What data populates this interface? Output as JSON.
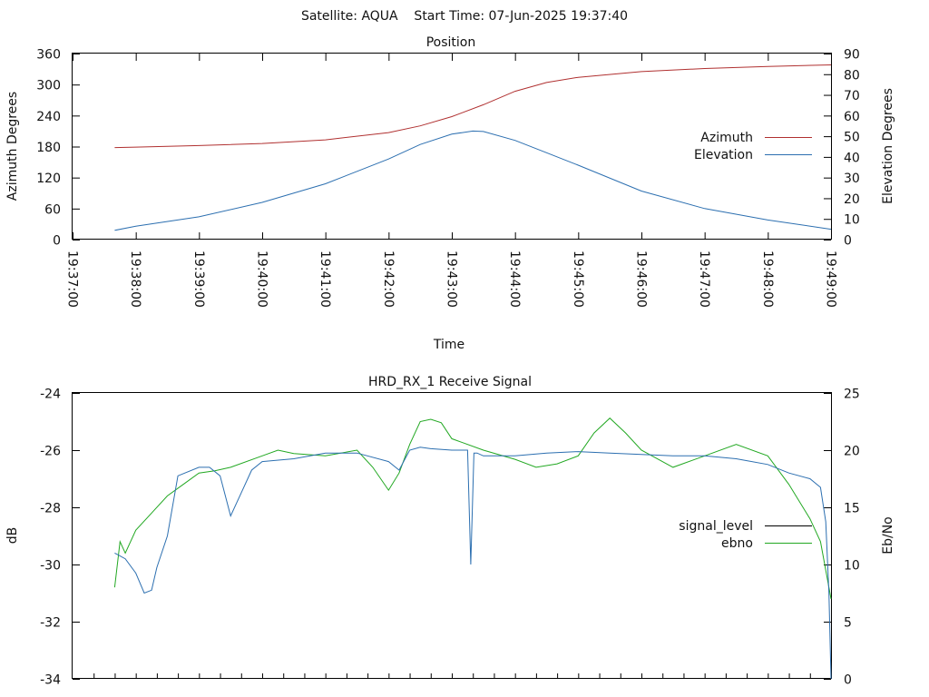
{
  "header": {
    "title": "Satellite: AQUA    Start Time: 07-Jun-2025 19:37:40"
  },
  "chart_data": [
    {
      "type": "line",
      "title": "Position",
      "xlabel": "Time",
      "ylabel": "Azimuth Degrees",
      "y2label": "Elevation Degrees",
      "xlim": [
        "19:37:00",
        "19:49:00"
      ],
      "ylim": [
        0,
        360
      ],
      "y2lim": [
        0,
        90
      ],
      "x_ticks": [
        "19:37:00",
        "19:38:00",
        "19:39:00",
        "19:40:00",
        "19:41:00",
        "19:42:00",
        "19:43:00",
        "19:44:00",
        "19:45:00",
        "19:46:00",
        "19:47:00",
        "19:48:00",
        "19:49:00"
      ],
      "y_ticks": [
        "0",
        "60",
        "120",
        "180",
        "240",
        "300",
        "360"
      ],
      "y2_ticks": [
        "0",
        "10",
        "20",
        "30",
        "40",
        "50",
        "60",
        "70",
        "80",
        "90"
      ],
      "grid": false,
      "legend_position": "right",
      "series": [
        {
          "name": "Azimuth",
          "axis": "left",
          "color": "#b03030",
          "x": [
            "19:37:40",
            "19:38:00",
            "19:39:00",
            "19:40:00",
            "19:41:00",
            "19:42:00",
            "19:42:30",
            "19:43:00",
            "19:43:30",
            "19:44:00",
            "19:44:30",
            "19:45:00",
            "19:46:00",
            "19:47:00",
            "19:48:00",
            "19:49:00"
          ],
          "y": [
            178,
            179,
            182,
            186,
            193,
            207,
            220,
            238,
            261,
            287,
            304,
            314,
            325,
            331,
            335,
            338
          ]
        },
        {
          "name": "Elevation",
          "axis": "right",
          "color": "#2c6fb0",
          "x": [
            "19:37:40",
            "19:38:00",
            "19:39:00",
            "19:40:00",
            "19:41:00",
            "19:42:00",
            "19:42:30",
            "19:43:00",
            "19:43:20",
            "19:43:30",
            "19:44:00",
            "19:44:30",
            "19:45:00",
            "19:46:00",
            "19:47:00",
            "19:48:00",
            "19:49:00"
          ],
          "y": [
            4.5,
            6.5,
            11,
            18,
            27,
            39,
            46,
            51,
            52.5,
            52.3,
            48,
            42,
            36,
            23.5,
            15,
            9.5,
            5
          ]
        }
      ]
    },
    {
      "type": "line",
      "title": "HRD_RX_1 Receive Signal",
      "xlabel": "",
      "ylabel": "dB",
      "y2label": "Eb/No",
      "xlim": [
        "19:37:00",
        "19:49:00"
      ],
      "ylim": [
        -34,
        -24
      ],
      "y2lim": [
        0,
        25
      ],
      "y_ticks": [
        "-34",
        "-32",
        "-30",
        "-28",
        "-26",
        "-24"
      ],
      "y2_ticks": [
        "0",
        "5",
        "10",
        "15",
        "20",
        "25"
      ],
      "grid": false,
      "legend_position": "right",
      "series": [
        {
          "name": "signal_level",
          "axis": "left",
          "color": "#2c6fb0",
          "x": [
            "19:37:40",
            "19:37:50",
            "19:38:00",
            "19:38:08",
            "19:38:15",
            "19:38:20",
            "19:38:30",
            "19:38:40",
            "19:39:00",
            "19:39:10",
            "19:39:20",
            "19:39:30",
            "19:39:40",
            "19:39:50",
            "19:40:00",
            "19:40:30",
            "19:41:00",
            "19:41:30",
            "19:42:00",
            "19:42:10",
            "19:42:20",
            "19:42:30",
            "19:42:40",
            "19:43:00",
            "19:43:15",
            "19:43:18",
            "19:43:21",
            "19:43:24",
            "19:43:30",
            "19:44:00",
            "19:44:30",
            "19:45:00",
            "19:45:30",
            "19:46:00",
            "19:46:30",
            "19:47:00",
            "19:47:30",
            "19:48:00",
            "19:48:20",
            "19:48:40",
            "19:48:50",
            "19:48:55",
            "19:48:58",
            "19:49:00"
          ],
          "y": [
            -29.6,
            -29.8,
            -30.3,
            -31.0,
            -30.9,
            -30.1,
            -29.0,
            -26.9,
            -26.6,
            -26.6,
            -26.9,
            -28.3,
            -27.5,
            -26.7,
            -26.4,
            -26.3,
            -26.1,
            -26.1,
            -26.4,
            -26.7,
            -26.0,
            -25.9,
            -25.95,
            -26.0,
            -26.0,
            -30.0,
            -26.1,
            -26.1,
            -26.2,
            -26.2,
            -26.1,
            -26.05,
            -26.1,
            -26.15,
            -26.2,
            -26.2,
            -26.3,
            -26.5,
            -26.8,
            -27.0,
            -27.3,
            -28.5,
            -31.0,
            -34.0
          ]
        },
        {
          "name": "ebno",
          "axis": "right",
          "color": "#22a822",
          "x": [
            "19:37:40",
            "19:37:45",
            "19:37:50",
            "19:38:00",
            "19:38:15",
            "19:38:30",
            "19:38:45",
            "19:39:00",
            "19:39:15",
            "19:39:30",
            "19:40:00",
            "19:40:15",
            "19:40:30",
            "19:41:00",
            "19:41:30",
            "19:41:45",
            "19:42:00",
            "19:42:10",
            "19:42:20",
            "19:42:30",
            "19:42:40",
            "19:42:50",
            "19:43:00",
            "19:43:30",
            "19:44:00",
            "19:44:20",
            "19:44:40",
            "19:45:00",
            "19:45:15",
            "19:45:30",
            "19:45:45",
            "19:46:00",
            "19:46:30",
            "19:47:00",
            "19:47:30",
            "19:48:00",
            "19:48:20",
            "19:48:40",
            "19:48:50",
            "19:49:00"
          ],
          "y": [
            8,
            12,
            11,
            13,
            14.5,
            16,
            17,
            18,
            18.2,
            18.5,
            19.5,
            20,
            19.7,
            19.5,
            20,
            18.5,
            16.5,
            18,
            20.5,
            22.5,
            22.7,
            22.4,
            21,
            20,
            19.2,
            18.5,
            18.8,
            19.5,
            21.5,
            22.8,
            21.5,
            20,
            18.5,
            19.5,
            20.5,
            19.5,
            17,
            14,
            12,
            7
          ]
        }
      ]
    }
  ]
}
